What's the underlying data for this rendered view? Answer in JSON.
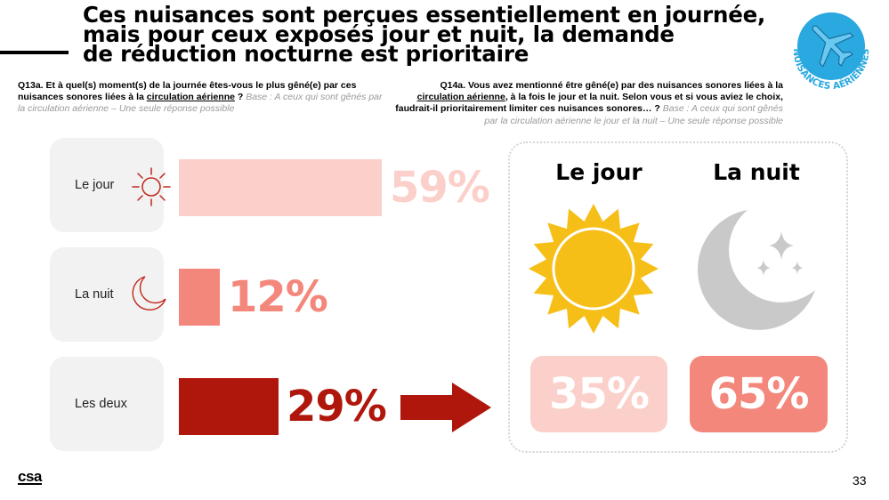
{
  "title_lines": [
    "Ces nuisances sont perçues essentiellement en journée,",
    "mais pour ceux exposés jour et nuit, la demande",
    "de réduction nocturne est prioritaire"
  ],
  "badge": {
    "text": "NUISANCES AÉRIENNES",
    "icon": "airplane-icon",
    "color": "#2aa8e0"
  },
  "q13": {
    "bold_prefix": "Q13a. Et à quel(s) moment(s) de la journée êtes-vous le plus gêné(e) par ces nuisances sonores liées à la ",
    "underlined": "circulation aérienne",
    "bold_suffix": " ? ",
    "base": "Base : A ceux qui sont gênés par la circulation aérienne – Une seule réponse possible"
  },
  "q14": {
    "bold_prefix": "Q14a. Vous avez mentionné être gêné(e) par des nuisances sonores liées à la ",
    "underlined": "circulation aérienne",
    "bold_suffix": ", à la fois le jour et la nuit. Selon vous et si vous aviez le choix, faudrait-il prioritairement limiter ces nuisances sonores… ? ",
    "base": "Base : A ceux qui sont gênés par la circulation aérienne le jour et la nuit – Une seule réponse possible"
  },
  "chart_data": [
    {
      "type": "bar",
      "categories": [
        "Le jour",
        "La nuit",
        "Les deux"
      ],
      "values": [
        59,
        12,
        29
      ],
      "labels": [
        "59%",
        "12%",
        "29%"
      ],
      "colors": [
        "#fbcfca",
        "#f4877b",
        "#b0170c"
      ],
      "icons": [
        "sun-outline-icon",
        "moon-outline-icon",
        ""
      ]
    },
    {
      "type": "bar",
      "categories": [
        "Le jour",
        "La nuit"
      ],
      "values": [
        35,
        65
      ],
      "labels": [
        "35%",
        "65%"
      ],
      "colors": [
        "#fbcfca",
        "#f4877b"
      ],
      "icons": [
        "sun-icon",
        "moon-stars-icon"
      ]
    }
  ],
  "footer": {
    "logo": "csa",
    "page": "33"
  }
}
